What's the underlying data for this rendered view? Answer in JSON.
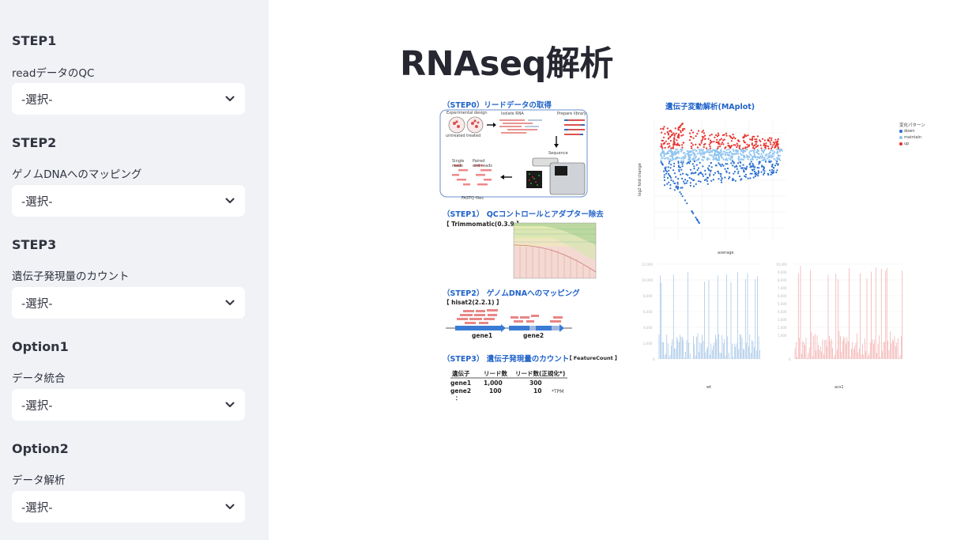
{
  "sidebar": {
    "sections": [
      {
        "title": "STEP1",
        "label": "readデータのQC",
        "value": "-選択-"
      },
      {
        "title": "STEP2",
        "label": "ゲノムDNAへのマッピング",
        "value": "-選択-"
      },
      {
        "title": "STEP3",
        "label": "遺伝子発現量のカウント",
        "value": "-選択-"
      },
      {
        "title": "Option1",
        "label": "データ統合",
        "value": "-選択-"
      },
      {
        "title": "Option2",
        "label": "データ解析",
        "value": "-選択-"
      }
    ]
  },
  "main": {
    "title": "RNAseq解析",
    "figure": {
      "step0": "（STEP0）リードデータの取得",
      "step0_exp": "Experimental design",
      "step0_isolate": "Isolate RNA",
      "step0_prepare": "Prepare library",
      "step0_untreated": "untreated",
      "step0_treated": "treated",
      "step0_sequence": "Sequence",
      "step0_single": "Single reads",
      "step0_paired": "Paired end reads",
      "step0_fastq": "FASTQ files",
      "step1": "（STEP1） QCコントロールとアダプター除去",
      "step1_tool": "【 Trimmomatic(0.3.9 】",
      "step2": "（STEP2） ゲノムDNAへのマッピング",
      "step2_tool": "【 hisat2(2.2.1) 】",
      "gene1": "gene1",
      "gene2": "gene2",
      "step3": "（STEP3） 遺伝子発現量のカウント",
      "step3_tool": "【 FeatureCount 】",
      "table_headers": [
        "遺伝子",
        "リード数",
        "リード数(正規化*)"
      ],
      "table_rows": [
        [
          "gene1",
          "1,000",
          "300"
        ],
        [
          "gene2",
          "100",
          "10"
        ],
        [
          "：",
          "",
          ""
        ]
      ],
      "table_note": "*TPM",
      "maplot_title": "遺伝子変動解析(MAplot)",
      "maplot_xlabel": "average",
      "maplot_ylabel": "log2 fold change",
      "maplot_legend_title": "変化パターン",
      "maplot_legend": [
        "down",
        "maintain",
        "up"
      ],
      "bar1_xlabel": "wt",
      "bar2_xlabel": "acs1"
    }
  },
  "colors": {
    "sidebar_bg": "#f0f2f6",
    "accent_blue": "#1f62c9",
    "up": "#e8322e",
    "maintain": "#8fc4f0",
    "down": "#2a6fd0"
  }
}
